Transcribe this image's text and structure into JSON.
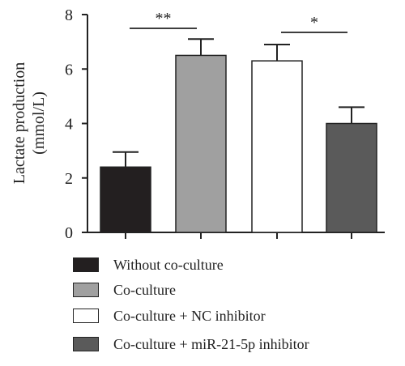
{
  "chart_data": {
    "type": "bar",
    "ylabel": "Lactate production\n(mmol/L)",
    "ylim": [
      0,
      8
    ],
    "yticks": [
      "0",
      "2",
      "4",
      "6",
      "8"
    ],
    "categories": [
      "Without co-culture",
      "Co-culture",
      "Co-culture + NC inhibitor",
      "Co-culture + miR-21-5p inhibitor"
    ],
    "values": [
      2.4,
      6.5,
      6.3,
      4.0
    ],
    "errors": [
      0.55,
      0.6,
      0.6,
      0.6
    ],
    "colors": [
      "#231f20",
      "#a0a0a0",
      "#ffffff",
      "#5a5a5a"
    ],
    "significance": [
      {
        "from": 0,
        "to": 1,
        "label": "**"
      },
      {
        "from": 2,
        "to": 3,
        "label": "*"
      }
    ],
    "legend": [
      {
        "label": "Without co-culture",
        "color": "#231f20"
      },
      {
        "label": "Co-culture",
        "color": "#a0a0a0"
      },
      {
        "label": "Co-culture + NC inhibitor",
        "color": "#ffffff"
      },
      {
        "label": "Co-culture + miR-21-5p inhibitor",
        "color": "#5a5a5a"
      }
    ],
    "legend_position": "bottom",
    "grid": false
  }
}
